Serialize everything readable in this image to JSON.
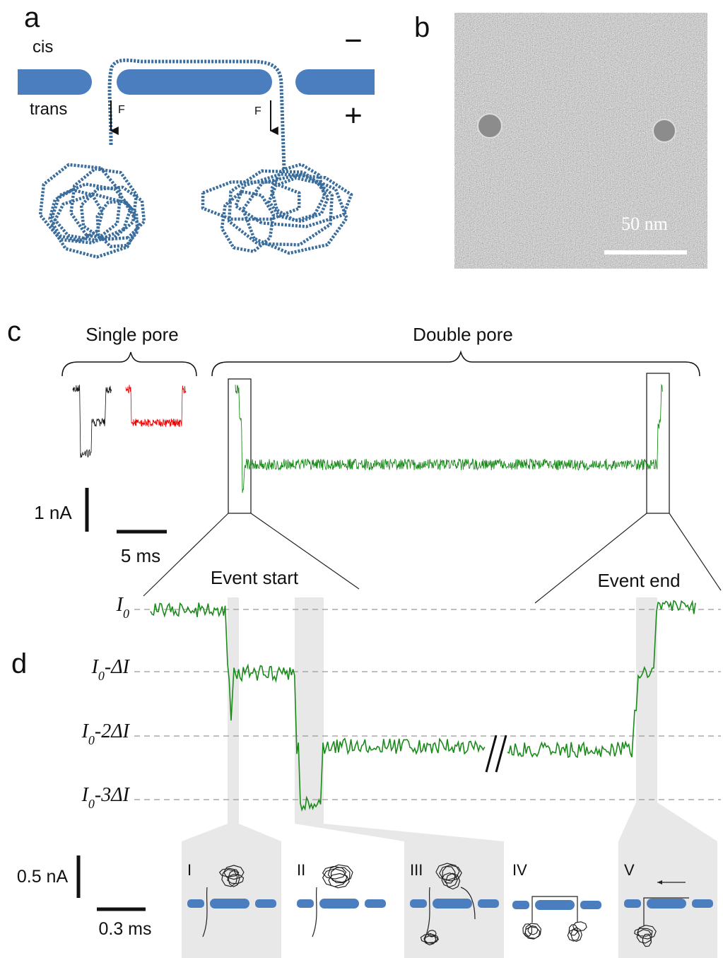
{
  "panel_a": {
    "label": "a",
    "cis": "cis",
    "trans": "trans",
    "minus": "−",
    "plus": "+",
    "force_left": "F",
    "force_right": "F"
  },
  "panel_b": {
    "label": "b",
    "scale_bar": "50 nm"
  },
  "panel_c": {
    "label": "c",
    "single_pore": "Single pore",
    "double_pore": "Double pore",
    "current_scale": "1 nA",
    "time_scale": "5 ms"
  },
  "panel_d": {
    "label": "d",
    "event_start": "Event start",
    "event_end": "Event end",
    "levels": [
      {
        "symbol": "I",
        "subscript": "0"
      },
      {
        "symbol": "I",
        "subscript": "0",
        "suffix": "-ΔI"
      },
      {
        "symbol": "I",
        "subscript": "0",
        "suffix": "-2ΔI"
      },
      {
        "symbol": "I",
        "subscript": "0",
        "suffix": "-3ΔI"
      }
    ],
    "current_scale": "0.5 nA",
    "time_scale": "0.3 ms",
    "stages": [
      "I",
      "II",
      "III",
      "IV",
      "V"
    ]
  }
}
